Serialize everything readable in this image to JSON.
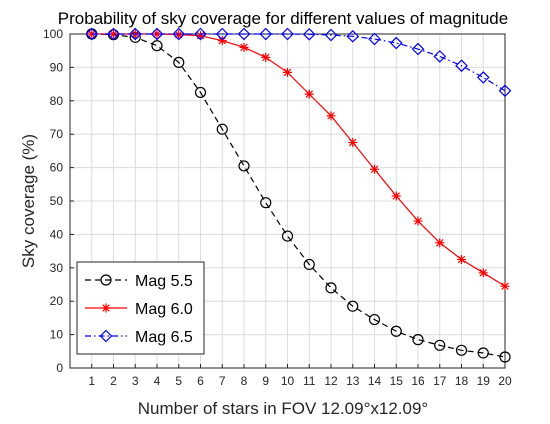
{
  "chart_data": {
    "type": "line",
    "title": "Probability of sky coverage for different values of magnitude",
    "xlabel": "Number of stars in FOV 12.09°x12.09°",
    "ylabel": "Sky coverage (%)",
    "xlim": [
      0,
      20
    ],
    "ylim": [
      0,
      100
    ],
    "xticks": [
      1,
      2,
      3,
      4,
      5,
      6,
      7,
      8,
      9,
      10,
      11,
      12,
      13,
      14,
      15,
      16,
      17,
      18,
      19,
      20
    ],
    "yticks": [
      0,
      10,
      20,
      30,
      40,
      50,
      60,
      70,
      80,
      90,
      100
    ],
    "grid": true,
    "legend_position": "bottom-left",
    "x": [
      1,
      2,
      3,
      4,
      5,
      6,
      7,
      8,
      9,
      10,
      11,
      12,
      13,
      14,
      15,
      16,
      17,
      18,
      19,
      20
    ],
    "series": [
      {
        "name": "Mag 5.5",
        "color": "#000000",
        "line_style": "dashed",
        "marker": "circle",
        "values": [
          100,
          99.8,
          99,
          96.5,
          91.5,
          82.5,
          71.5,
          60.5,
          49.5,
          39.5,
          31,
          24,
          18.5,
          14.5,
          11,
          8.5,
          6.8,
          5.3,
          4.5,
          3.3
        ]
      },
      {
        "name": "Mag 6.0",
        "color": "#ff0000",
        "line_style": "solid",
        "marker": "asterisk",
        "values": [
          100,
          100,
          100,
          100,
          99.8,
          99.5,
          98,
          96,
          93,
          88.5,
          82,
          75.5,
          67.5,
          59.5,
          51.5,
          44,
          37.5,
          32.5,
          28.5,
          24.5
        ]
      },
      {
        "name": "Mag 6.5",
        "color": "#0000ff",
        "line_style": "dashdot",
        "marker": "diamond",
        "values": [
          100,
          100,
          100,
          100,
          100,
          100,
          100,
          100,
          100,
          100,
          99.9,
          99.7,
          99.3,
          98.5,
          97.3,
          95.5,
          93.3,
          90.5,
          87,
          83
        ]
      }
    ]
  }
}
